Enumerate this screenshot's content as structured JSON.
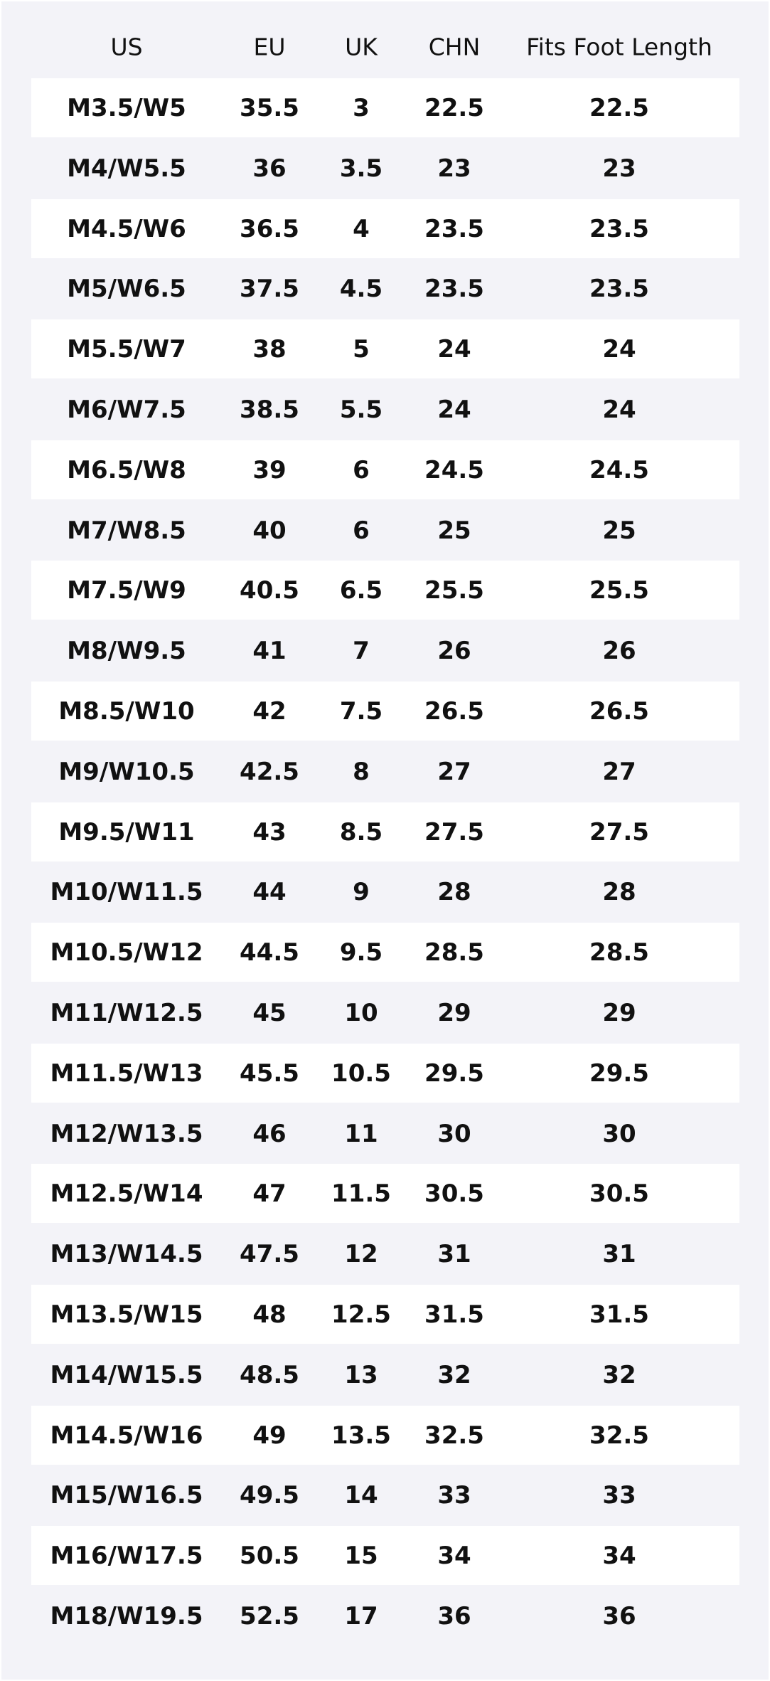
{
  "table": {
    "header": [
      "US",
      "EU",
      "UK",
      "CHN",
      "Fits Foot Length"
    ],
    "rows": [
      [
        "M3.5/W5",
        "35.5",
        "3",
        "22.5",
        "22.5"
      ],
      [
        "M4/W5.5",
        "36",
        "3.5",
        "23",
        "23"
      ],
      [
        "M4.5/W6",
        "36.5",
        "4",
        "23.5",
        "23.5"
      ],
      [
        "M5/W6.5",
        "37.5",
        "4.5",
        "23.5",
        "23.5"
      ],
      [
        "M5.5/W7",
        "38",
        "5",
        "24",
        "24"
      ],
      [
        "M6/W7.5",
        "38.5",
        "5.5",
        "24",
        "24"
      ],
      [
        "M6.5/W8",
        "39",
        "6",
        "24.5",
        "24.5"
      ],
      [
        "M7/W8.5",
        "40",
        "6",
        "25",
        "25"
      ],
      [
        "M7.5/W9",
        "40.5",
        "6.5",
        "25.5",
        "25.5"
      ],
      [
        "M8/W9.5",
        "41",
        "7",
        "26",
        "26"
      ],
      [
        "M8.5/W10",
        "42",
        "7.5",
        "26.5",
        "26.5"
      ],
      [
        "M9/W10.5",
        "42.5",
        "8",
        "27",
        "27"
      ],
      [
        "M9.5/W11",
        "43",
        "8.5",
        "27.5",
        "27.5"
      ],
      [
        "M10/W11.5",
        "44",
        "9",
        "28",
        "28"
      ],
      [
        "M10.5/W12",
        "44.5",
        "9.5",
        "28.5",
        "28.5"
      ],
      [
        "M11/W12.5",
        "45",
        "10",
        "29",
        "29"
      ],
      [
        "M11.5/W13",
        "45.5",
        "10.5",
        "29.5",
        "29.5"
      ],
      [
        "M12/W13.5",
        "46",
        "11",
        "30",
        "30"
      ],
      [
        "M12.5/W14",
        "47",
        "11.5",
        "30.5",
        "30.5"
      ],
      [
        "M13/W14.5",
        "47.5",
        "12",
        "31",
        "31"
      ],
      [
        "M13.5/W15",
        "48",
        "12.5",
        "31.5",
        "31.5"
      ],
      [
        "M14/W15.5",
        "48.5",
        "13",
        "32",
        "32"
      ],
      [
        "M14.5/W16",
        "49",
        "13.5",
        "32.5",
        "32.5"
      ],
      [
        "M15/W16.5",
        "49.5",
        "14",
        "33",
        "33"
      ],
      [
        "M16/W17.5",
        "50.5",
        "15",
        "34",
        "34"
      ],
      [
        "M18/W19.5",
        "52.5",
        "17",
        "36",
        "36"
      ]
    ]
  }
}
